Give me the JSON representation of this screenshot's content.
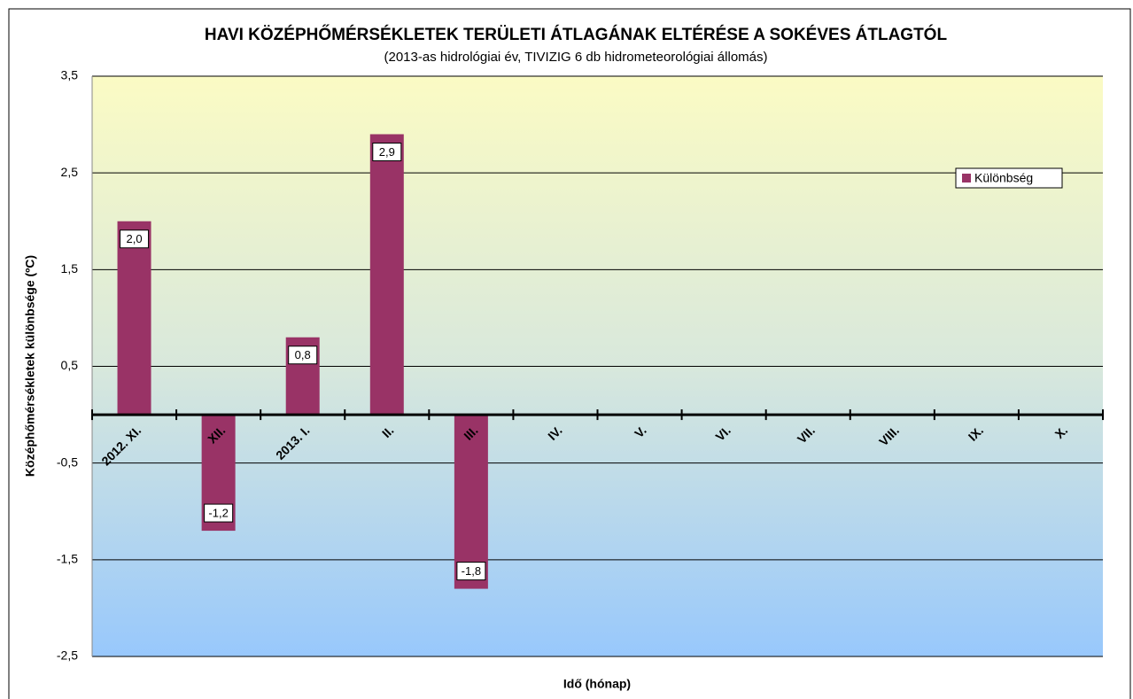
{
  "chart_data": {
    "type": "bar",
    "title": "HAVI KÖZÉPHŐMÉRSÉKLETEK TERÜLETI ÁTLAGÁNAK ELTÉRÉSE A SOKÉVES ÁTLAGTÓL",
    "subtitle": "(2013-as hidrológiai év, TIVIZIG 6 db hidrometeorológiai állomás)",
    "x_label": "Idő (hónap)",
    "y_label": "Középhőmérsékletek különbsége (ºC)",
    "categories": [
      "2012. XI.",
      "XII.",
      "2013. I.",
      "II.",
      "III.",
      "IV.",
      "V.",
      "VI.",
      "VII.",
      "VIII.",
      "IX.",
      "X."
    ],
    "series": [
      {
        "name": "Különbség",
        "color": "#993366",
        "values": [
          2.0,
          -1.2,
          0.8,
          2.9,
          -1.8,
          null,
          null,
          null,
          null,
          null,
          null,
          null
        ],
        "value_labels": [
          "2,0",
          "-1,2",
          "0,8",
          "2,9",
          "-1,8",
          null,
          null,
          null,
          null,
          null,
          null,
          null
        ]
      }
    ],
    "ylim": [
      -2.5,
      3.5
    ],
    "yticks": [
      {
        "value": -2.5,
        "label": "-2,5"
      },
      {
        "value": -1.5,
        "label": "-1,5"
      },
      {
        "value": -0.5,
        "label": "-0,5"
      },
      {
        "value": 0.5,
        "label": "0,5"
      },
      {
        "value": 1.5,
        "label": "1,5"
      },
      {
        "value": 2.5,
        "label": "2,5"
      },
      {
        "value": 3.5,
        "label": "3,5"
      }
    ],
    "grid": true,
    "legend": "right"
  }
}
